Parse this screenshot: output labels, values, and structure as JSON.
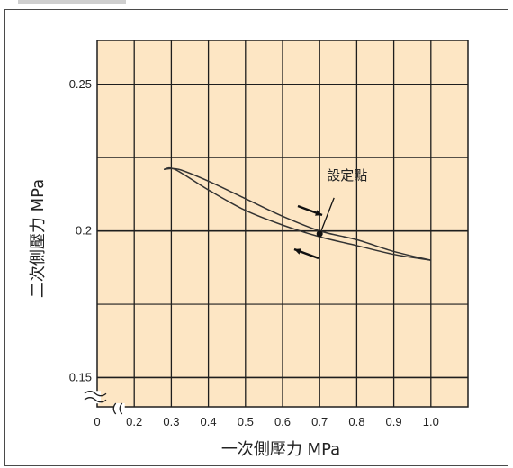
{
  "chart_data": {
    "type": "line",
    "xlabel": "一次側壓力 MPa",
    "ylabel": "二次側壓力 MPa",
    "x_ticks": [
      "0",
      "0.2",
      "0.3",
      "0.4",
      "0.5",
      "0.6",
      "0.7",
      "0.8",
      "0.9",
      "1.0"
    ],
    "y_ticks": [
      "0.25",
      "0.2",
      "0.15"
    ],
    "y_tick_values": [
      0.25,
      0.2,
      0.15
    ],
    "xlim": [
      0.1,
      1.1
    ],
    "ylim": [
      0.14,
      0.265
    ],
    "axis_break": true,
    "grid": true,
    "series": [
      {
        "x": [
          0.28,
          0.32,
          0.4,
          0.5,
          0.6,
          0.7,
          0.8,
          0.9,
          1.0
        ],
        "y": [
          0.221,
          0.221,
          0.217,
          0.211,
          0.205,
          0.2,
          0.197,
          0.193,
          0.19
        ]
      },
      {
        "x": [
          0.28,
          0.31,
          0.4,
          0.5,
          0.6,
          0.7,
          0.8,
          0.9,
          1.0
        ],
        "y": [
          0.221,
          0.221,
          0.214,
          0.207,
          0.202,
          0.198,
          0.195,
          0.192,
          0.19
        ]
      }
    ],
    "annotations": [
      {
        "text": "設定點",
        "x": 0.7,
        "y": 0.199
      }
    ],
    "colors": {
      "plot_bg": "#fde6c4",
      "grid": "#1e1e1e",
      "line": "#333333",
      "text": "#222222"
    }
  }
}
